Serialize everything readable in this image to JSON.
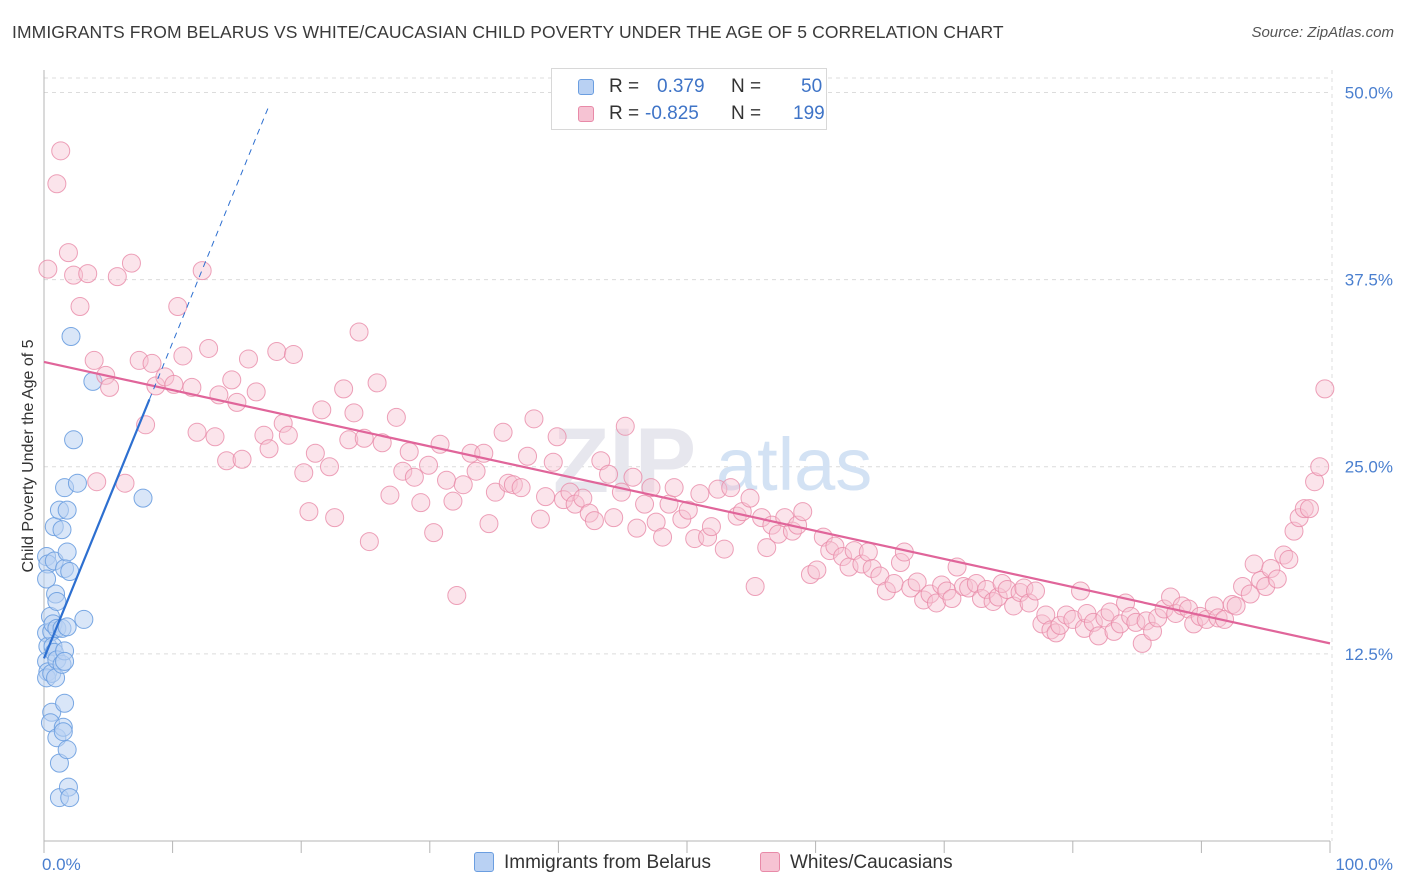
{
  "colors": {
    "blue": "#6b9ee0",
    "blue_fill": "#b9d1f3",
    "blue_line": "#2d6fd0",
    "pink": "#e88aa8",
    "pink_fill": "#f6c3d3",
    "pink_line": "#e0659a",
    "grid": "#dcdcdc",
    "tick_text": "#4a7fcf"
  },
  "chart_data": {
    "type": "scatter",
    "title": "IMMIGRANTS FROM BELARUS VS WHITE/CAUCASIAN CHILD POVERTY UNDER THE AGE OF 5 CORRELATION CHART",
    "source": "Source: ZipAtlas.com",
    "xlabel": "",
    "ylabel": "Child Poverty Under the Age of 5",
    "xlim": [
      0,
      100
    ],
    "ylim": [
      0,
      51.5
    ],
    "x_tick_labels": [
      "0.0%",
      "100.0%"
    ],
    "y_ticks": [
      12.5,
      25.0,
      37.5,
      50.0
    ],
    "y_tick_labels": [
      "12.5%",
      "25.0%",
      "37.5%",
      "50.0%"
    ],
    "grid": true,
    "legend_position": "bottom-center",
    "watermark": {
      "zip": "ZIP",
      "atlas": "atlas"
    },
    "stats": [
      {
        "r_label": "R =",
        "r_value": "0.379",
        "n_label": "N =",
        "n_value": "50"
      },
      {
        "r_label": "R =",
        "r_value": "-0.825",
        "n_label": "N =",
        "n_value": "199"
      }
    ],
    "series": [
      {
        "name": "Immigrants from Belarus",
        "trend": {
          "x0": 0,
          "y0": 12.2,
          "x1": 8.2,
          "y1": 29.5,
          "dash_to_x": 17.5
        },
        "points": [
          [
            0.2,
            19.0
          ],
          [
            0.3,
            18.5
          ],
          [
            0.2,
            17.5
          ],
          [
            0.2,
            13.9
          ],
          [
            0.3,
            13.0
          ],
          [
            0.2,
            12.0
          ],
          [
            0.3,
            11.3
          ],
          [
            0.2,
            10.9
          ],
          [
            0.5,
            15.0
          ],
          [
            0.6,
            14.0
          ],
          [
            0.7,
            14.5
          ],
          [
            0.7,
            13.0
          ],
          [
            0.8,
            12.6
          ],
          [
            0.6,
            11.2
          ],
          [
            0.6,
            8.6
          ],
          [
            0.5,
            7.9
          ],
          [
            0.8,
            21.0
          ],
          [
            0.8,
            18.7
          ],
          [
            0.9,
            16.5
          ],
          [
            1.0,
            16.0
          ],
          [
            1.0,
            14.2
          ],
          [
            1.0,
            12.1
          ],
          [
            0.9,
            10.9
          ],
          [
            1.0,
            6.9
          ],
          [
            1.2,
            22.1
          ],
          [
            1.2,
            5.2
          ],
          [
            1.2,
            2.9
          ],
          [
            1.4,
            20.8
          ],
          [
            1.4,
            14.2
          ],
          [
            1.4,
            11.8
          ],
          [
            1.5,
            7.6
          ],
          [
            1.5,
            7.3
          ],
          [
            1.6,
            23.6
          ],
          [
            1.6,
            18.2
          ],
          [
            1.6,
            12.7
          ],
          [
            1.6,
            12.0
          ],
          [
            1.6,
            9.2
          ],
          [
            1.8,
            22.1
          ],
          [
            1.8,
            19.3
          ],
          [
            1.8,
            14.3
          ],
          [
            1.8,
            6.1
          ],
          [
            1.9,
            3.6
          ],
          [
            2.0,
            2.9
          ],
          [
            2.0,
            18.0
          ],
          [
            2.1,
            33.7
          ],
          [
            2.3,
            26.8
          ],
          [
            2.6,
            23.9
          ],
          [
            3.1,
            14.8
          ],
          [
            3.8,
            30.7
          ],
          [
            7.7,
            22.9
          ]
        ]
      },
      {
        "name": "Whites/Caucasians",
        "trend": {
          "x0": 0,
          "y0": 32.0,
          "x1": 100,
          "y1": 13.2
        },
        "points": [
          [
            0.3,
            38.2
          ],
          [
            1.0,
            43.9
          ],
          [
            1.3,
            46.1
          ],
          [
            1.9,
            39.3
          ],
          [
            2.3,
            37.8
          ],
          [
            2.8,
            35.7
          ],
          [
            3.4,
            37.9
          ],
          [
            3.9,
            32.1
          ],
          [
            4.1,
            24.0
          ],
          [
            4.8,
            31.1
          ],
          [
            5.1,
            30.3
          ],
          [
            5.7,
            37.7
          ],
          [
            6.3,
            23.9
          ],
          [
            6.8,
            38.6
          ],
          [
            7.4,
            32.1
          ],
          [
            7.9,
            27.8
          ],
          [
            8.4,
            31.9
          ],
          [
            8.7,
            30.4
          ],
          [
            9.4,
            31.0
          ],
          [
            10.1,
            30.5
          ],
          [
            10.4,
            35.7
          ],
          [
            10.8,
            32.4
          ],
          [
            11.5,
            30.3
          ],
          [
            11.9,
            27.3
          ],
          [
            12.3,
            38.1
          ],
          [
            12.8,
            32.9
          ],
          [
            13.3,
            27.0
          ],
          [
            13.6,
            29.8
          ],
          [
            14.2,
            25.4
          ],
          [
            14.6,
            30.8
          ],
          [
            15.0,
            29.3
          ],
          [
            15.4,
            25.5
          ],
          [
            15.9,
            32.2
          ],
          [
            16.5,
            30.0
          ],
          [
            17.1,
            27.1
          ],
          [
            17.5,
            26.2
          ],
          [
            18.1,
            32.7
          ],
          [
            18.6,
            27.9
          ],
          [
            19.0,
            27.1
          ],
          [
            19.4,
            32.5
          ],
          [
            20.2,
            24.6
          ],
          [
            20.6,
            22.0
          ],
          [
            21.1,
            25.9
          ],
          [
            21.6,
            28.8
          ],
          [
            22.2,
            25.0
          ],
          [
            22.6,
            21.6
          ],
          [
            23.3,
            30.2
          ],
          [
            23.7,
            26.8
          ],
          [
            24.1,
            28.6
          ],
          [
            24.5,
            34.0
          ],
          [
            24.9,
            26.9
          ],
          [
            25.3,
            20.0
          ],
          [
            25.9,
            30.6
          ],
          [
            26.3,
            26.6
          ],
          [
            26.9,
            23.1
          ],
          [
            27.4,
            28.3
          ],
          [
            27.9,
            24.7
          ],
          [
            28.4,
            26.0
          ],
          [
            28.8,
            24.3
          ],
          [
            29.3,
            22.6
          ],
          [
            29.9,
            25.1
          ],
          [
            30.3,
            20.6
          ],
          [
            30.8,
            26.5
          ],
          [
            31.3,
            24.1
          ],
          [
            31.8,
            22.7
          ],
          [
            32.1,
            16.4
          ],
          [
            32.6,
            23.8
          ],
          [
            33.2,
            25.9
          ],
          [
            33.6,
            24.7
          ],
          [
            34.2,
            25.9
          ],
          [
            34.6,
            21.2
          ],
          [
            35.1,
            23.3
          ],
          [
            35.7,
            27.3
          ],
          [
            36.1,
            23.9
          ],
          [
            36.5,
            23.8
          ],
          [
            37.1,
            23.6
          ],
          [
            37.6,
            25.7
          ],
          [
            38.1,
            28.2
          ],
          [
            38.6,
            21.5
          ],
          [
            39.0,
            23.0
          ],
          [
            39.6,
            25.3
          ],
          [
            39.9,
            27.0
          ],
          [
            40.4,
            22.8
          ],
          [
            40.9,
            23.3
          ],
          [
            41.3,
            22.5
          ],
          [
            41.9,
            22.9
          ],
          [
            42.4,
            21.9
          ],
          [
            42.8,
            21.4
          ],
          [
            43.3,
            25.4
          ],
          [
            43.9,
            24.5
          ],
          [
            44.3,
            21.6
          ],
          [
            44.9,
            23.3
          ],
          [
            45.2,
            27.7
          ],
          [
            45.8,
            24.3
          ],
          [
            46.1,
            20.9
          ],
          [
            46.7,
            22.5
          ],
          [
            47.2,
            23.6
          ],
          [
            47.6,
            21.3
          ],
          [
            48.1,
            20.3
          ],
          [
            48.6,
            22.5
          ],
          [
            49.0,
            23.6
          ],
          [
            49.6,
            21.5
          ],
          [
            50.1,
            22.1
          ],
          [
            50.6,
            20.2
          ],
          [
            51.0,
            23.2
          ],
          [
            51.6,
            20.3
          ],
          [
            51.9,
            21.0
          ],
          [
            52.4,
            23.5
          ],
          [
            52.9,
            19.5
          ],
          [
            53.4,
            23.6
          ],
          [
            53.9,
            21.7
          ],
          [
            54.3,
            22.0
          ],
          [
            54.9,
            22.9
          ],
          [
            55.3,
            17.0
          ],
          [
            55.8,
            21.6
          ],
          [
            56.2,
            19.6
          ],
          [
            56.6,
            21.1
          ],
          [
            57.1,
            20.5
          ],
          [
            57.6,
            21.6
          ],
          [
            58.2,
            20.7
          ],
          [
            58.6,
            21.1
          ],
          [
            59.0,
            22.0
          ],
          [
            59.6,
            17.8
          ],
          [
            60.1,
            18.1
          ],
          [
            60.6,
            20.3
          ],
          [
            61.1,
            19.4
          ],
          [
            61.5,
            19.7
          ],
          [
            62.1,
            19.0
          ],
          [
            62.6,
            18.3
          ],
          [
            63.0,
            19.4
          ],
          [
            63.6,
            18.5
          ],
          [
            64.1,
            19.3
          ],
          [
            64.4,
            18.2
          ],
          [
            65.0,
            17.7
          ],
          [
            65.5,
            16.7
          ],
          [
            66.1,
            17.2
          ],
          [
            66.6,
            18.6
          ],
          [
            66.9,
            19.3
          ],
          [
            67.4,
            16.9
          ],
          [
            67.9,
            17.3
          ],
          [
            68.4,
            16.1
          ],
          [
            68.9,
            16.5
          ],
          [
            69.4,
            15.9
          ],
          [
            69.8,
            17.1
          ],
          [
            70.2,
            16.7
          ],
          [
            70.6,
            16.2
          ],
          [
            71.0,
            18.3
          ],
          [
            71.5,
            17.0
          ],
          [
            71.9,
            16.9
          ],
          [
            72.5,
            17.2
          ],
          [
            72.9,
            16.2
          ],
          [
            73.3,
            16.8
          ],
          [
            73.8,
            16.0
          ],
          [
            74.2,
            16.3
          ],
          [
            74.5,
            17.2
          ],
          [
            74.9,
            16.8
          ],
          [
            75.4,
            15.7
          ],
          [
            75.9,
            16.6
          ],
          [
            76.2,
            16.9
          ],
          [
            76.6,
            15.9
          ],
          [
            77.1,
            16.7
          ],
          [
            77.6,
            14.5
          ],
          [
            77.9,
            15.1
          ],
          [
            78.3,
            14.1
          ],
          [
            78.7,
            13.9
          ],
          [
            79.0,
            14.4
          ],
          [
            79.5,
            15.1
          ],
          [
            80.0,
            14.8
          ],
          [
            80.6,
            16.7
          ],
          [
            80.9,
            14.2
          ],
          [
            81.1,
            15.2
          ],
          [
            81.6,
            14.6
          ],
          [
            82.0,
            13.7
          ],
          [
            82.5,
            14.9
          ],
          [
            82.9,
            15.3
          ],
          [
            83.2,
            14.0
          ],
          [
            83.7,
            14.5
          ],
          [
            84.1,
            15.9
          ],
          [
            84.5,
            15.0
          ],
          [
            84.9,
            14.6
          ],
          [
            85.4,
            13.2
          ],
          [
            85.7,
            14.7
          ],
          [
            86.2,
            14.0
          ],
          [
            86.6,
            14.9
          ],
          [
            87.1,
            15.5
          ],
          [
            87.6,
            16.3
          ],
          [
            88.0,
            15.2
          ],
          [
            88.5,
            15.7
          ],
          [
            89.0,
            15.5
          ],
          [
            89.4,
            14.5
          ],
          [
            89.9,
            15.0
          ],
          [
            90.4,
            14.8
          ],
          [
            91.0,
            15.7
          ],
          [
            91.3,
            14.9
          ],
          [
            91.8,
            14.8
          ],
          [
            92.4,
            15.8
          ],
          [
            92.7,
            15.7
          ],
          [
            93.2,
            17.0
          ],
          [
            93.8,
            16.5
          ],
          [
            94.1,
            18.5
          ],
          [
            94.6,
            17.4
          ],
          [
            95.0,
            17.0
          ],
          [
            95.4,
            18.2
          ],
          [
            95.9,
            17.5
          ],
          [
            96.4,
            19.1
          ],
          [
            96.8,
            18.8
          ],
          [
            97.2,
            20.7
          ],
          [
            97.6,
            21.6
          ],
          [
            98.0,
            22.2
          ],
          [
            98.4,
            22.2
          ],
          [
            98.8,
            24.0
          ],
          [
            99.2,
            25.0
          ],
          [
            99.6,
            30.2
          ]
        ]
      }
    ]
  }
}
